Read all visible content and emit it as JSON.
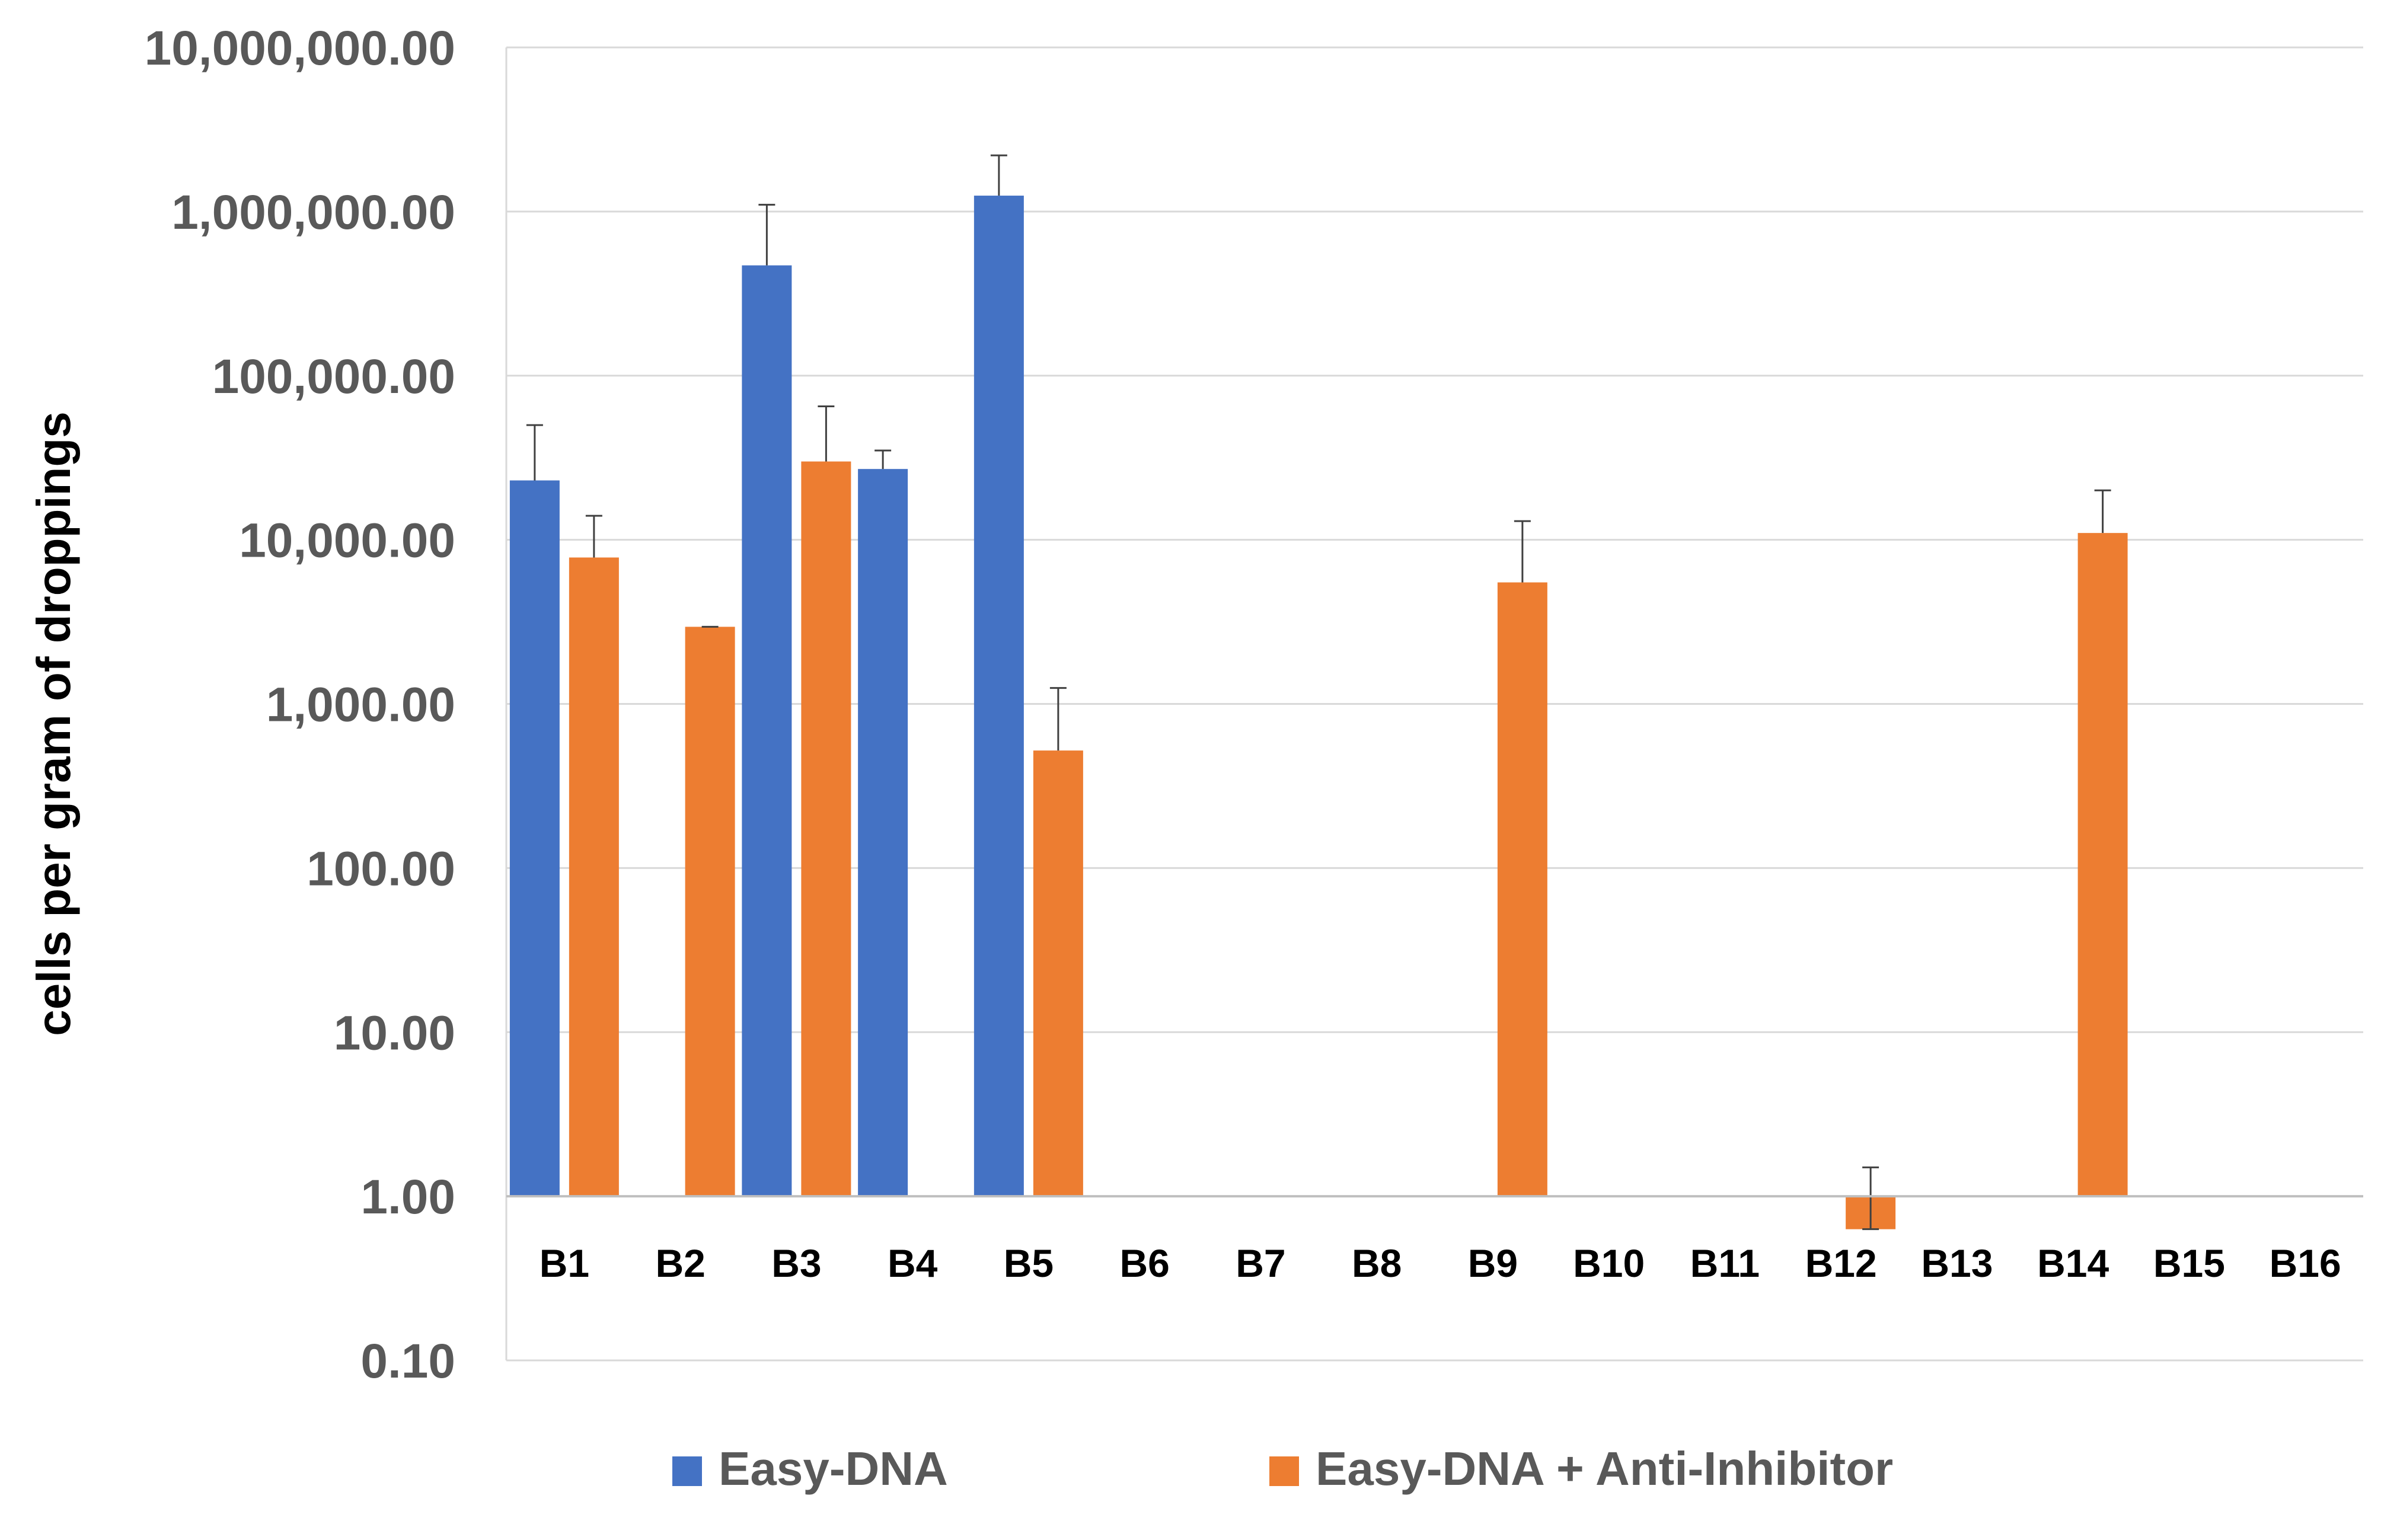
{
  "chart_data": {
    "type": "bar",
    "ylabel": "cells per gram of droppings",
    "xlabel": "",
    "yscale": "log",
    "ylim": [
      0.1,
      10000000
    ],
    "baseline": 1,
    "grid": true,
    "legend_position": "bottom",
    "y_tick_labels": [
      "0.10",
      "1.00",
      "10.00",
      "100.00",
      "1,000.00",
      "10,000.00",
      "100,000.00",
      "1,000,000.00",
      "10,000,000.00"
    ],
    "categories": [
      "B1",
      "B2",
      "B3",
      "B4",
      "B5",
      "B6",
      "B7",
      "B8",
      "B9",
      "B10",
      "B11",
      "B12",
      "B13",
      "B14",
      "B15",
      "B16"
    ],
    "series": [
      {
        "name": "Easy-DNA",
        "color": "#4472C4",
        "values": [
          23000,
          null,
          470000,
          27000,
          1250000,
          null,
          null,
          null,
          null,
          null,
          null,
          null,
          null,
          null,
          null,
          null
        ],
        "error_upper": [
          50000,
          null,
          1100000,
          35000,
          2200000,
          null,
          null,
          null,
          null,
          null,
          null,
          null,
          null,
          null,
          null,
          null
        ]
      },
      {
        "name": "Easy-DNA + Anti-Inhibitor",
        "color": "#ED7D31",
        "values": [
          7800,
          2950,
          30000,
          null,
          520,
          null,
          null,
          null,
          5500,
          null,
          null,
          0.63,
          null,
          11000,
          null,
          null
        ],
        "error_upper": [
          14000,
          2950,
          65000,
          null,
          1250,
          null,
          null,
          null,
          13000,
          null,
          null,
          1.5,
          null,
          20000,
          null,
          null
        ]
      }
    ]
  }
}
